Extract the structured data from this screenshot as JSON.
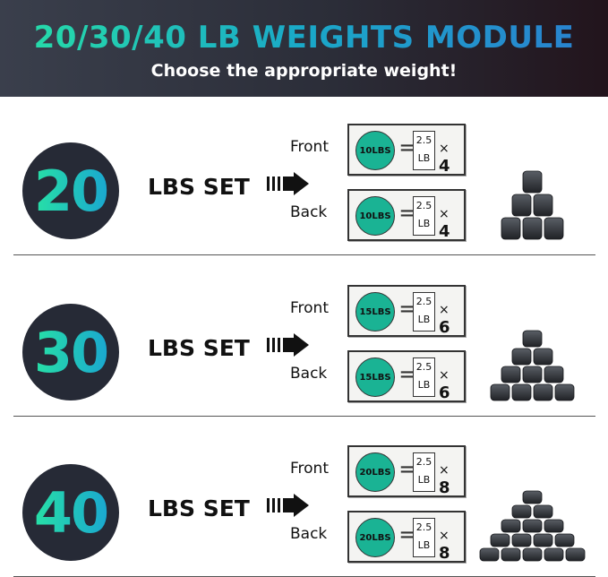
{
  "header": {
    "title": "20/30/40 LB WEIGHTS MODULE",
    "subtitle": "Choose the appropriate weight!"
  },
  "colors": {
    "accent": "#27e0a6",
    "disc": "#1ab394",
    "header_bg": "#2b2d38"
  },
  "sets": [
    {
      "number": "20",
      "label": "LBS SET",
      "front": {
        "side": "Front",
        "disc": "10LBS",
        "plate": [
          "2.5",
          "LB"
        ],
        "times": "×",
        "count": "4"
      },
      "back": {
        "side": "Back",
        "disc": "10LBS",
        "plate": [
          "2.5",
          "LB"
        ],
        "times": "×",
        "count": "4"
      }
    },
    {
      "number": "30",
      "label": "LBS SET",
      "front": {
        "side": "Front",
        "disc": "15LBS",
        "plate": [
          "2.5",
          "LB"
        ],
        "times": "×",
        "count": "6"
      },
      "back": {
        "side": "Back",
        "disc": "15LBS",
        "plate": [
          "2.5",
          "LB"
        ],
        "times": "×",
        "count": "6"
      }
    },
    {
      "number": "40",
      "label": "LBS SET",
      "front": {
        "side": "Front",
        "disc": "20LBS",
        "plate": [
          "2.5",
          "LB"
        ],
        "times": "×",
        "count": "8"
      },
      "back": {
        "side": "Back",
        "disc": "20LBS",
        "plate": [
          "2.5",
          "LB"
        ],
        "times": "×",
        "count": "8"
      }
    }
  ]
}
